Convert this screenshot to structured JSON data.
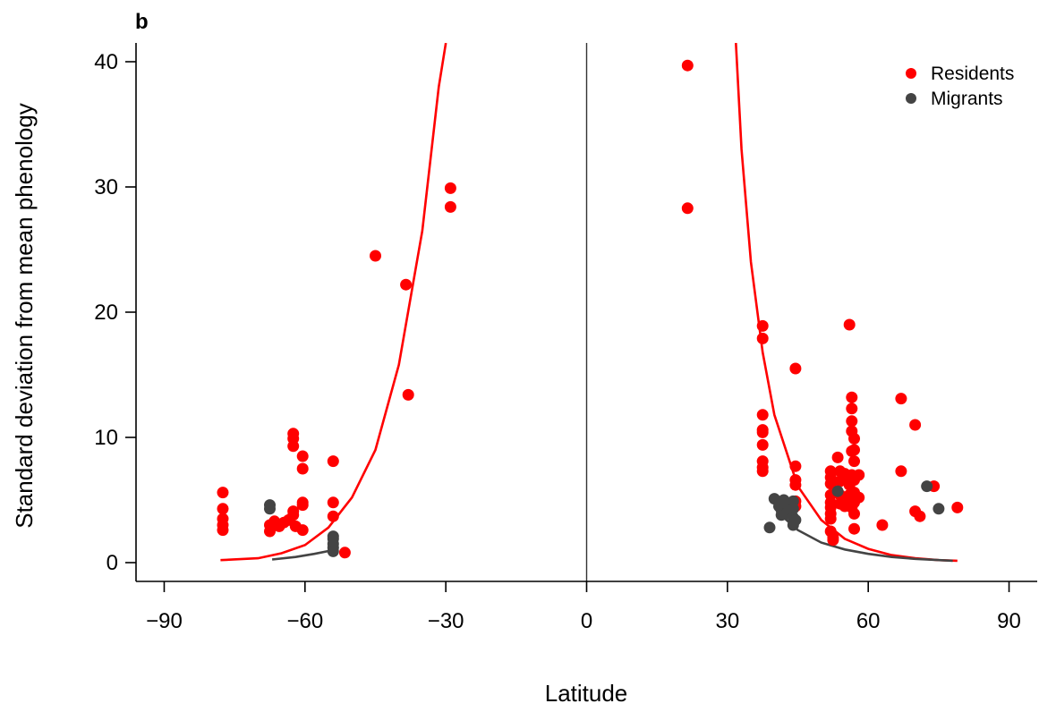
{
  "panel_label": "b",
  "chart_data": {
    "type": "scatter",
    "xlabel": "Latitude",
    "ylabel": "Standard deviation from mean phenology",
    "xlim": [
      -96,
      96
    ],
    "ylim": [
      -1.5,
      41.5
    ],
    "xticks": [
      -90,
      -60,
      -30,
      0,
      30,
      60,
      90
    ],
    "xtick_labels": [
      "−90",
      "−60",
      "−30",
      "0",
      "30",
      "60",
      "90"
    ],
    "yticks": [
      0,
      10,
      20,
      30,
      40
    ],
    "ytick_labels": [
      "0",
      "10",
      "20",
      "30",
      "40"
    ],
    "vertical_line_x": 0,
    "legend_position": "top-right",
    "series": [
      {
        "name": "Residents",
        "color": "#ff0000",
        "points": [
          [
            -77.5,
            5.6
          ],
          [
            -77.5,
            4.3
          ],
          [
            -77.5,
            3.5
          ],
          [
            -77.5,
            3.0
          ],
          [
            -77.5,
            2.6
          ],
          [
            -67.5,
            3.0
          ],
          [
            -67.5,
            2.5
          ],
          [
            -66.5,
            3.3
          ],
          [
            -65.5,
            2.9
          ],
          [
            -64.5,
            3.2
          ],
          [
            -63.5,
            3.4
          ],
          [
            -62.5,
            10.3
          ],
          [
            -62.5,
            9.9
          ],
          [
            -62.5,
            9.3
          ],
          [
            -62.5,
            4.1
          ],
          [
            -62.5,
            3.8
          ],
          [
            -62.0,
            2.9
          ],
          [
            -60.5,
            8.5
          ],
          [
            -60.5,
            7.5
          ],
          [
            -60.5,
            4.8
          ],
          [
            -60.5,
            4.6
          ],
          [
            -60.5,
            2.6
          ],
          [
            -54.0,
            8.1
          ],
          [
            -54.0,
            4.8
          ],
          [
            -54.0,
            3.7
          ],
          [
            -51.5,
            0.8
          ],
          [
            -45.0,
            24.5
          ],
          [
            -38.5,
            22.2
          ],
          [
            -38.0,
            13.4
          ],
          [
            -29.0,
            29.9
          ],
          [
            -29.0,
            28.4
          ],
          [
            21.5,
            39.7
          ],
          [
            21.5,
            28.3
          ],
          [
            37.5,
            18.9
          ],
          [
            37.5,
            17.9
          ],
          [
            37.5,
            11.8
          ],
          [
            37.5,
            10.6
          ],
          [
            37.5,
            10.4
          ],
          [
            37.5,
            9.4
          ],
          [
            37.5,
            8.1
          ],
          [
            37.5,
            7.6
          ],
          [
            37.5,
            7.3
          ],
          [
            44.5,
            15.5
          ],
          [
            44.5,
            7.7
          ],
          [
            44.5,
            6.6
          ],
          [
            44.5,
            6.2
          ],
          [
            44.5,
            4.9
          ],
          [
            44.5,
            4.5
          ],
          [
            52.0,
            7.3
          ],
          [
            52.0,
            6.8
          ],
          [
            52.0,
            6.3
          ],
          [
            52.0,
            5.4
          ],
          [
            52.0,
            4.8
          ],
          [
            52.0,
            4.4
          ],
          [
            52.0,
            3.9
          ],
          [
            52.0,
            3.5
          ],
          [
            52.0,
            2.5
          ],
          [
            52.5,
            2.0
          ],
          [
            52.5,
            1.8
          ],
          [
            53.5,
            8.4
          ],
          [
            54.0,
            7.3
          ],
          [
            54.0,
            6.5
          ],
          [
            54.0,
            5.4
          ],
          [
            54.0,
            4.7
          ],
          [
            55.0,
            7.1
          ],
          [
            55.0,
            4.5
          ],
          [
            56.0,
            19.0
          ],
          [
            56.5,
            13.2
          ],
          [
            56.5,
            12.3
          ],
          [
            56.5,
            11.3
          ],
          [
            56.5,
            10.5
          ],
          [
            56.5,
            8.9
          ],
          [
            56.5,
            7.0
          ],
          [
            56.0,
            6.5
          ],
          [
            56.0,
            6.2
          ],
          [
            56.0,
            5.4
          ],
          [
            56.0,
            5.0
          ],
          [
            56.5,
            4.4
          ],
          [
            57.0,
            9.9
          ],
          [
            57.0,
            9.0
          ],
          [
            57.0,
            8.1
          ],
          [
            57.0,
            6.6
          ],
          [
            57.0,
            5.6
          ],
          [
            57.0,
            4.8
          ],
          [
            57.0,
            3.9
          ],
          [
            57.0,
            2.7
          ],
          [
            58.0,
            7.0
          ],
          [
            58.0,
            5.2
          ],
          [
            63.0,
            3.0
          ],
          [
            67.0,
            13.1
          ],
          [
            67.0,
            7.3
          ],
          [
            70.0,
            11.0
          ],
          [
            70.0,
            4.1
          ],
          [
            71.0,
            3.7
          ],
          [
            74.0,
            6.1
          ],
          [
            79.0,
            4.4
          ]
        ],
        "fit": [
          [
            -78.0,
            0.2
          ],
          [
            -70.0,
            0.35
          ],
          [
            -65.0,
            0.75
          ],
          [
            -60.0,
            1.4
          ],
          [
            -55.0,
            2.8
          ],
          [
            -50.0,
            5.2
          ],
          [
            -45.0,
            9.0
          ],
          [
            -40.0,
            15.8
          ],
          [
            -35.0,
            26.5
          ],
          [
            -31.5,
            38.0
          ],
          [
            -30.0,
            41.5
          ],
          [
            31.8,
            41.5
          ],
          [
            33.0,
            33.0
          ],
          [
            35.0,
            24.0
          ],
          [
            37.5,
            16.8
          ],
          [
            40.0,
            11.8
          ],
          [
            45.0,
            6.1
          ],
          [
            50.0,
            3.4
          ],
          [
            55.0,
            1.9
          ],
          [
            60.0,
            1.1
          ],
          [
            65.0,
            0.6
          ],
          [
            70.0,
            0.35
          ],
          [
            75.0,
            0.2
          ],
          [
            79.0,
            0.15
          ]
        ]
      },
      {
        "name": "Migrants",
        "color": "#444444",
        "points": [
          [
            -67.5,
            4.6
          ],
          [
            -67.5,
            4.3
          ],
          [
            -54.0,
            2.1
          ],
          [
            -54.0,
            1.9
          ],
          [
            -54.0,
            1.5
          ],
          [
            -54.0,
            1.2
          ],
          [
            -54.0,
            0.9
          ],
          [
            39.0,
            2.8
          ],
          [
            40.0,
            5.1
          ],
          [
            41.0,
            4.5
          ],
          [
            41.5,
            4.2
          ],
          [
            41.5,
            3.8
          ],
          [
            42.0,
            5.0
          ],
          [
            42.5,
            4.7
          ],
          [
            42.5,
            3.9
          ],
          [
            44.0,
            4.9
          ],
          [
            44.0,
            4.3
          ],
          [
            44.0,
            3.6
          ],
          [
            44.0,
            3.0
          ],
          [
            44.5,
            3.4
          ],
          [
            53.5,
            5.7
          ],
          [
            72.5,
            6.1
          ],
          [
            75.0,
            4.3
          ]
        ],
        "fit": [
          [
            -67.0,
            0.25
          ],
          [
            -62.0,
            0.45
          ],
          [
            -58.0,
            0.7
          ],
          [
            -54.0,
            1.0
          ],
          [
            39.5,
            5.0
          ],
          [
            42.0,
            3.6
          ],
          [
            45.0,
            2.6
          ],
          [
            50.0,
            1.6
          ],
          [
            55.0,
            1.05
          ],
          [
            60.0,
            0.7
          ],
          [
            65.0,
            0.45
          ],
          [
            70.0,
            0.3
          ],
          [
            78.0,
            0.15
          ]
        ]
      }
    ]
  }
}
